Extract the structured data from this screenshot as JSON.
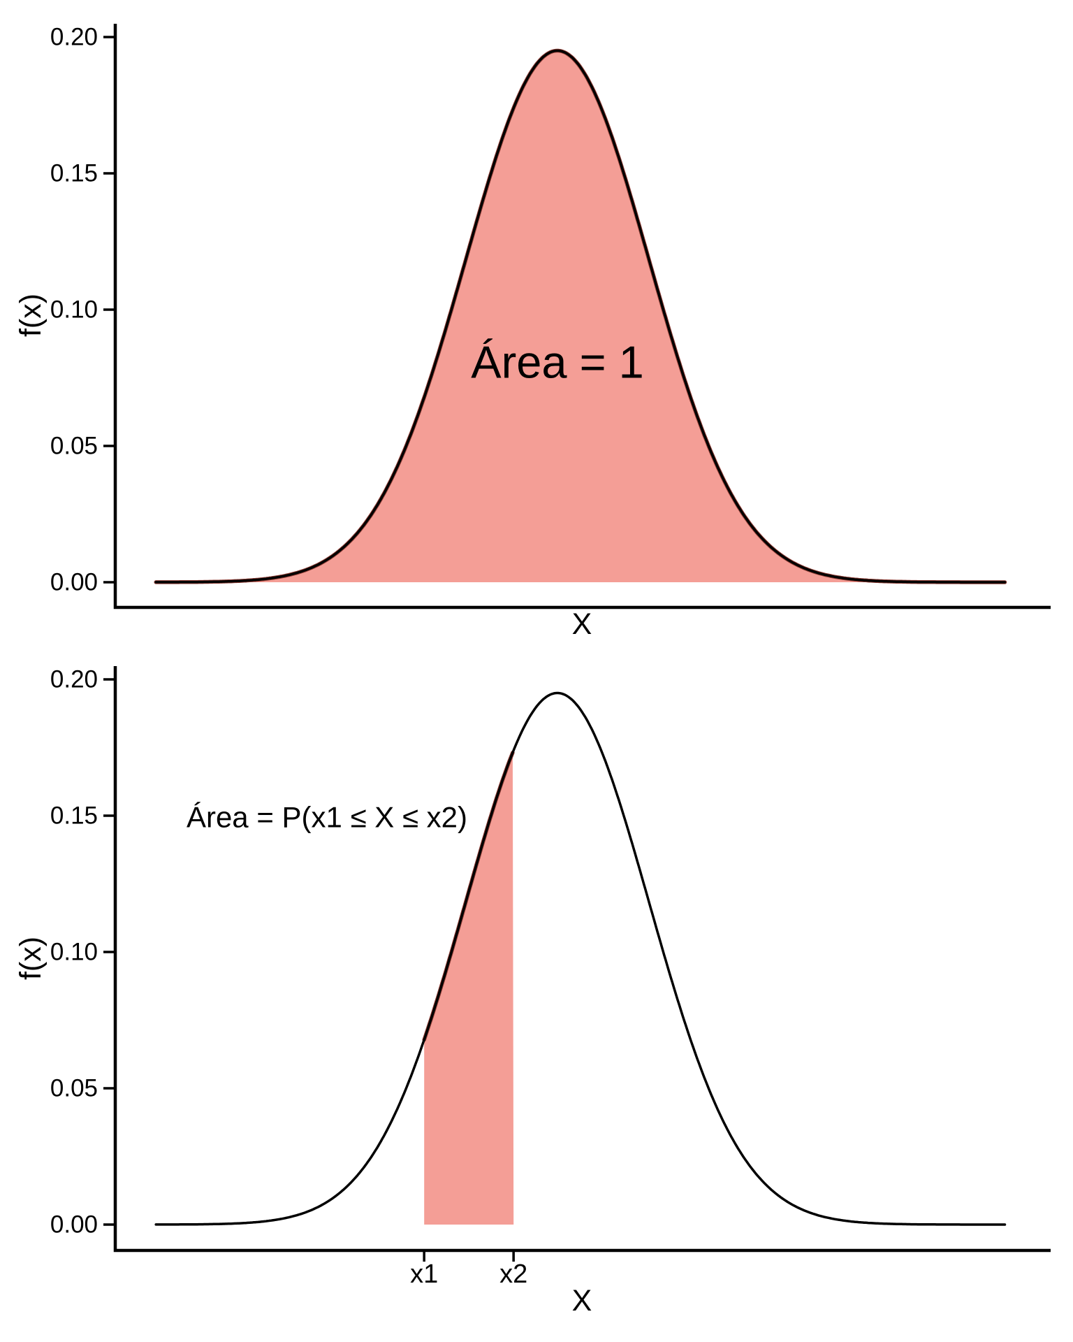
{
  "figure": {
    "background": "#FFFFFF",
    "fill_color": "#F49E96",
    "fill_edge_color": "#8C3B33",
    "curve_color": "#000000",
    "axis_color": "#000000",
    "annotation_red": "#E3422F"
  },
  "chart_data": [
    {
      "type": "area",
      "panel": "top",
      "title": "",
      "xlabel": "X",
      "ylabel": "f(x)",
      "x_range": [
        0,
        20.95
      ],
      "y_axis": {
        "range": [
          -0.0098,
          0.2048
        ],
        "ticks": [
          {
            "value": 0.0,
            "label": "0.00"
          },
          {
            "value": 0.05,
            "label": "0.05"
          },
          {
            "value": 0.1,
            "label": "0.10"
          },
          {
            "value": 0.15,
            "label": "0.15"
          },
          {
            "value": 0.2,
            "label": "0.20"
          }
        ]
      },
      "x_axis": {
        "ticks": []
      },
      "curve": {
        "distribution": "normal-pdf",
        "mean": 9.92,
        "sd": 2.05,
        "peak_density": 0.195,
        "draw_from": 0.94,
        "draw_to": 19.95
      },
      "shaded_region": {
        "from": 0.94,
        "to": 19.95,
        "meaning": "total area under the density curve"
      },
      "annotation": {
        "text": "Área = 1",
        "color": "#000000",
        "x": 9.92,
        "y": 0.081
      }
    },
    {
      "type": "area",
      "panel": "bottom",
      "title": "",
      "xlabel": "X",
      "ylabel": "f(x)",
      "x_range": [
        0,
        20.95
      ],
      "y_axis": {
        "range": [
          -0.0098,
          0.2048
        ],
        "ticks": [
          {
            "value": 0.0,
            "label": "0.00"
          },
          {
            "value": 0.05,
            "label": "0.05"
          },
          {
            "value": 0.1,
            "label": "0.10"
          },
          {
            "value": 0.15,
            "label": "0.15"
          },
          {
            "value": 0.2,
            "label": "0.20"
          }
        ]
      },
      "x_axis": {
        "ticks": [
          {
            "value": 6.94,
            "label": "x1"
          },
          {
            "value": 8.94,
            "label": "x2"
          }
        ]
      },
      "curve": {
        "distribution": "normal-pdf",
        "mean": 9.92,
        "sd": 2.05,
        "peak_density": 0.195,
        "draw_from": 0.94,
        "draw_to": 19.95
      },
      "shaded_region": {
        "from": 6.94,
        "to": 8.94,
        "meaning": "probability that X lies between x1 and x2"
      },
      "annotation": {
        "text": "Área = P(x1 ≤ X ≤ x2)",
        "color": "#E3422F",
        "x": 4.77,
        "y": 0.1495
      }
    }
  ]
}
